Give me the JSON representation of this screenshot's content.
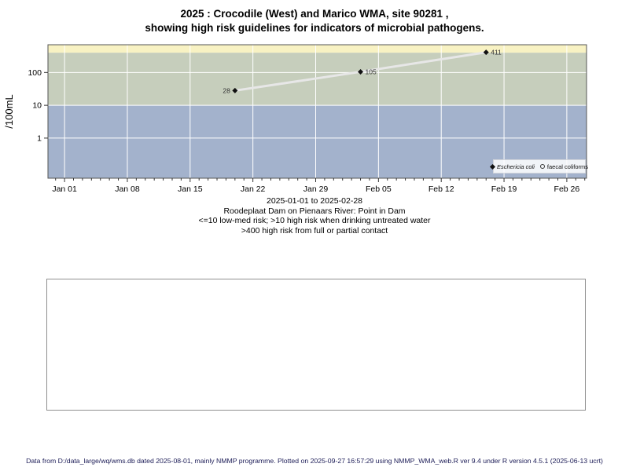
{
  "title": {
    "line1": "2025 : Crocodile (West) and Marico WMA, site 90281 ,",
    "line2": "showing high risk guidelines for indicators of microbial pathogens."
  },
  "chart_data": {
    "type": "line",
    "title": "2025 : Crocodile (West) and Marico WMA, site 90281 , showing high risk guidelines for indicators of microbial pathogens.",
    "ylabel": "/100mL",
    "y_scale": "log10",
    "ylim": [
      0.06,
      700
    ],
    "y_ticks": [
      1,
      10,
      100
    ],
    "y_tick_labels": [
      "1",
      "10",
      "100"
    ],
    "x_tick_labels": [
      "Jan 01",
      "Jan 08",
      "Jan 15",
      "Jan 22",
      "Jan 29",
      "Feb 05",
      "Feb 12",
      "Feb 19",
      "Feb 26"
    ],
    "x_tick_days": [
      0,
      7,
      14,
      21,
      28,
      35,
      42,
      49,
      56
    ],
    "xlim_days": [
      -1.85,
      58.2
    ],
    "x_minor_tick_every_days": 1,
    "grid": true,
    "gridline_color": "#ffffff",
    "axis_color": "#555555",
    "tick_color": "#333333",
    "bands": [
      {
        "name": "high-risk-contact",
        "from": 400,
        "to": 700,
        "color": "#f8f2c3"
      },
      {
        "name": "high-risk-drinking",
        "from": 10,
        "to": 400,
        "color": "#c6cebc"
      },
      {
        "name": "low-med-risk",
        "from": 0.06,
        "to": 10,
        "color": "#a3b2cc"
      }
    ],
    "series": [
      {
        "name": "Eschericia coli",
        "marker": "filled-diamond",
        "x_days": [
          19,
          33,
          47
        ],
        "values": [
          28,
          105,
          411
        ],
        "point_labels": [
          "28",
          "105",
          "411"
        ],
        "label_sides": [
          "left",
          "right",
          "right"
        ],
        "line_color": "#e7e7e7",
        "marker_color": "#111111"
      },
      {
        "name": "faecal coliforms",
        "marker": "open-circle",
        "x_days": [],
        "values": []
      }
    ],
    "legend_position": "bottom-right"
  },
  "legend": {
    "items": [
      {
        "label": "Eschericia coli",
        "marker": "filled-diamond"
      },
      {
        "label": "faecal coliforms",
        "marker": "open-circle"
      }
    ]
  },
  "caption": {
    "line1": "2025-01-01 to 2025-02-28",
    "line2": "Roodeplaat Dam on Pienaars River: Point in Dam",
    "line3": "<=10 low-med risk; >10 high risk when drinking untreated water",
    "line4": ">400 high risk from full or partial contact"
  },
  "footer": {
    "text": "Data from D:/data_large/wq/wms.db dated 2025-08-01, mainly NMMP programme. Plotted on 2025-09-27 16:57:29 using NMMP_WMA_web.R ver 9.4 under R version 4.5.1 (2025-06-13 ucrt)"
  }
}
